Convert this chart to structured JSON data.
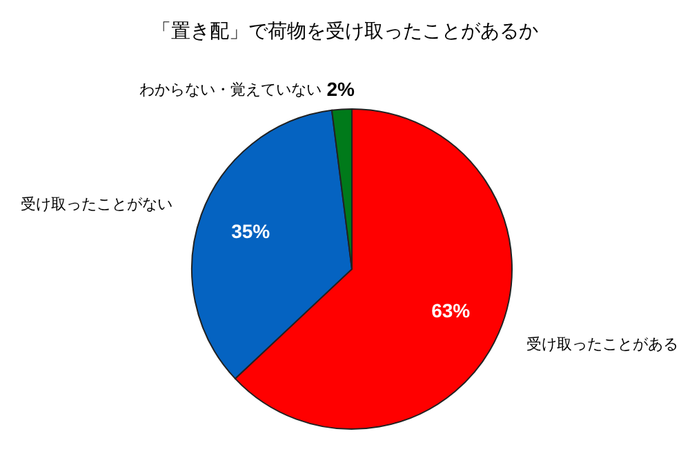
{
  "chart_data": {
    "type": "pie",
    "title": "「置き配」で荷物を受け取ったことがあるか",
    "categories": [
      "受け取ったことがある",
      "受け取ったことがない",
      "わからない・覚えていない"
    ],
    "values": [
      63,
      35,
      2
    ],
    "colors": [
      "#ff0000",
      "#0563c1",
      "#007a1a"
    ],
    "value_labels": [
      "63%",
      "35%",
      "2%"
    ],
    "legend": false
  }
}
